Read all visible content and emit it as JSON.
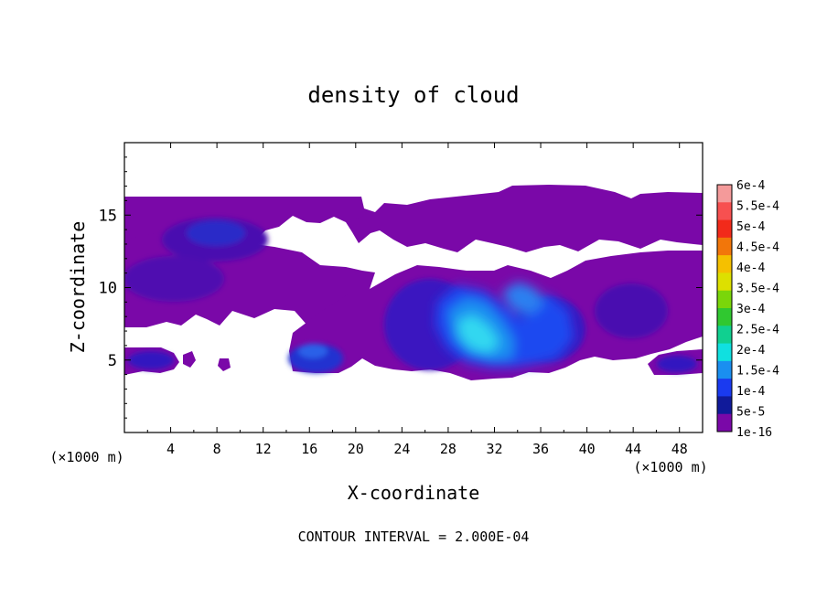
{
  "chart_data": {
    "type": "heatmap",
    "title": "density of cloud",
    "xlabel": "X-coordinate",
    "ylabel": "Z-coordinate",
    "x_unit_label": "(×1000 m)",
    "y_unit_label": "(×1000 m)",
    "xlim": [
      0,
      50
    ],
    "ylim": [
      0,
      20
    ],
    "x_ticks": [
      "4",
      "8",
      "12",
      "16",
      "20",
      "24",
      "28",
      "32",
      "36",
      "40",
      "44",
      "48"
    ],
    "y_ticks": [
      "5",
      "10",
      "15"
    ],
    "footer": "CONTOUR INTERVAL = 2.000E-04",
    "colorbar": {
      "labels": [
        "6e-4",
        "5.5e-4",
        "5e-4",
        "4.5e-4",
        "4e-4",
        "3.5e-4",
        "3e-4",
        "2.5e-4",
        "2e-4",
        "1.5e-4",
        "1e-4",
        "5e-5",
        "1e-16"
      ],
      "colors": [
        "#f49a9a",
        "#f75050",
        "#f22a1a",
        "#f2760a",
        "#f5c000",
        "#dde000",
        "#7ad60a",
        "#30c830",
        "#10d090",
        "#10e0e0",
        "#1a8ff0",
        "#1a3af0",
        "#101a9a",
        "#7a08a8"
      ]
    },
    "cloud_regions": [
      {
        "x": [
          0,
          50
        ],
        "z": [
          12.6,
          16.3
        ],
        "level": "1e-16"
      },
      {
        "x": [
          0,
          21
        ],
        "z": [
          7.3,
          12.6
        ],
        "level": "1e-16"
      },
      {
        "x": [
          14,
          40
        ],
        "z": [
          3.8,
          10.7
        ],
        "level": "1e-16"
      },
      {
        "x": [
          38,
          50
        ],
        "z": [
          5,
          12.5
        ],
        "level": "1e-16"
      },
      {
        "x": [
          0,
          3
        ],
        "z": [
          4,
          6
        ],
        "level": "1e-16"
      },
      {
        "x": [
          45,
          50
        ],
        "z": [
          4,
          6
        ],
        "level": "1e-16"
      },
      {
        "x": [
          27,
          31
        ],
        "z": [
          5.5,
          8.5
        ],
        "level": "1.5e-4"
      },
      {
        "x": [
          29,
          33
        ],
        "z": [
          8.5,
          10
        ],
        "level": "1e-4"
      }
    ]
  }
}
